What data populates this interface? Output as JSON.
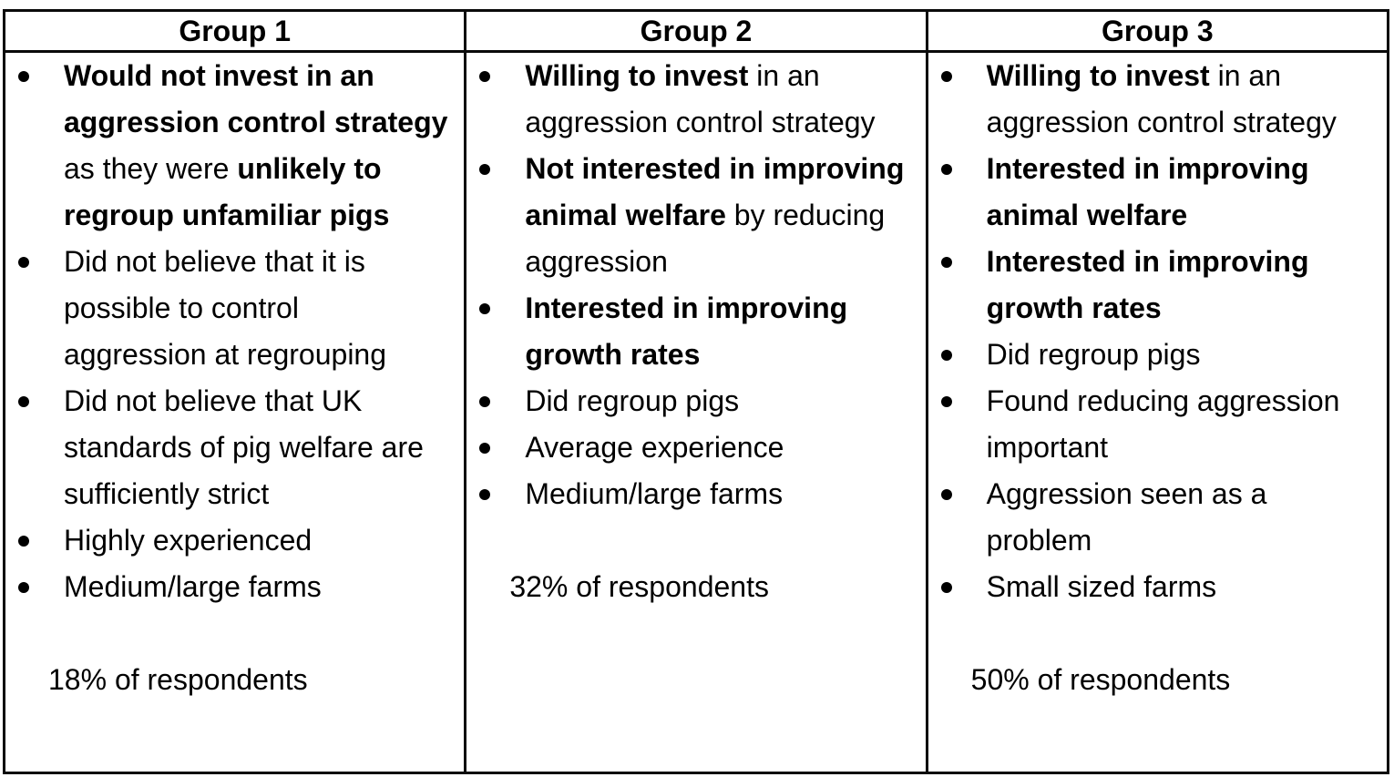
{
  "colors": {
    "background": "#ffffff",
    "text": "#000000",
    "border": "#0a0a0a"
  },
  "groups": [
    {
      "header": "Group 1",
      "items": [
        {
          "lines": [
            [
              {
                "text": "Would not invest in an",
                "bold": true
              }
            ],
            [
              {
                "text": "aggression control strategy",
                "bold": true
              }
            ],
            [
              {
                "text": "as they were ",
                "bold": false
              },
              {
                "text": "unlikely to",
                "bold": true
              }
            ],
            [
              {
                "text": "regroup unfamiliar pigs",
                "bold": true
              }
            ]
          ]
        },
        {
          "lines": [
            [
              {
                "text": "Did not believe that it is",
                "bold": false
              }
            ],
            [
              {
                "text": "possible to control",
                "bold": false
              }
            ],
            [
              {
                "text": "aggression at regrouping",
                "bold": false
              }
            ]
          ]
        },
        {
          "lines": [
            [
              {
                "text": "Did not believe that UK",
                "bold": false
              }
            ],
            [
              {
                "text": "standards of pig welfare are",
                "bold": false
              }
            ],
            [
              {
                "text": "sufficiently strict",
                "bold": false
              }
            ]
          ]
        },
        {
          "lines": [
            [
              {
                "text": "Highly experienced",
                "bold": false
              }
            ]
          ]
        },
        {
          "lines": [
            [
              {
                "text": "Medium/large farms",
                "bold": false
              }
            ]
          ]
        }
      ],
      "footer": "18% of respondents"
    },
    {
      "header": "Group 2",
      "items": [
        {
          "lines": [
            [
              {
                "text": "Willing to invest",
                "bold": true
              },
              {
                "text": " in an",
                "bold": false
              }
            ],
            [
              {
                "text": "aggression control strategy",
                "bold": false
              }
            ]
          ]
        },
        {
          "lines": [
            [
              {
                "text": "Not interested in improving",
                "bold": true
              }
            ],
            [
              {
                "text": "animal welfare",
                "bold": true
              },
              {
                "text": " by reducing",
                "bold": false
              }
            ],
            [
              {
                "text": "aggression",
                "bold": false
              }
            ]
          ]
        },
        {
          "lines": [
            [
              {
                "text": "Interested in improving",
                "bold": true
              }
            ],
            [
              {
                "text": "growth rates",
                "bold": true
              }
            ]
          ]
        },
        {
          "lines": [
            [
              {
                "text": "Did regroup pigs",
                "bold": false
              }
            ]
          ]
        },
        {
          "lines": [
            [
              {
                "text": "Average experience",
                "bold": false
              }
            ]
          ]
        },
        {
          "lines": [
            [
              {
                "text": "Medium/large farms",
                "bold": false
              }
            ]
          ]
        }
      ],
      "footer": "32% of respondents"
    },
    {
      "header": "Group 3",
      "items": [
        {
          "lines": [
            [
              {
                "text": "Willing to invest",
                "bold": true
              },
              {
                "text": " in an",
                "bold": false
              }
            ],
            [
              {
                "text": "aggression control strategy",
                "bold": false
              }
            ]
          ]
        },
        {
          "lines": [
            [
              {
                "text": "Interested in improving",
                "bold": true
              }
            ],
            [
              {
                "text": "animal welfare",
                "bold": true
              }
            ]
          ]
        },
        {
          "lines": [
            [
              {
                "text": "Interested in improving",
                "bold": true
              }
            ],
            [
              {
                "text": "growth rates",
                "bold": true
              }
            ]
          ]
        },
        {
          "lines": [
            [
              {
                "text": "Did regroup pigs",
                "bold": false
              }
            ]
          ]
        },
        {
          "lines": [
            [
              {
                "text": "Found reducing aggression",
                "bold": false
              }
            ],
            [
              {
                "text": "important",
                "bold": false
              }
            ]
          ]
        },
        {
          "lines": [
            [
              {
                "text": "Aggression seen as a",
                "bold": false
              }
            ],
            [
              {
                "text": "problem",
                "bold": false
              }
            ]
          ]
        },
        {
          "lines": [
            [
              {
                "text": "Small sized farms",
                "bold": false
              }
            ]
          ]
        }
      ],
      "footer": "50% of respondents"
    }
  ]
}
